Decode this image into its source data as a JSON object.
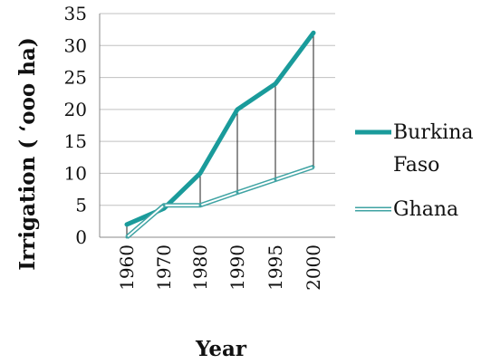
{
  "chart_data": {
    "type": "line",
    "title": "",
    "xlabel": "Year",
    "ylabel": "Irrigation ( ‘ooo ha)",
    "categories": [
      "1960",
      "1970",
      "1980",
      "1990",
      "1995",
      "2000"
    ],
    "ylim": [
      0,
      35
    ],
    "yticks": [
      "0",
      "5",
      "10",
      "15",
      "20",
      "25",
      "30",
      "35"
    ],
    "grid": "horizontal",
    "legend_position": "right",
    "series": [
      {
        "name": "Burkina Faso",
        "values": [
          2,
          4.5,
          10,
          20,
          24,
          32
        ],
        "color": "#1a9b9b",
        "style": "thick"
      },
      {
        "name": "Ghana",
        "values": [
          0,
          5,
          5,
          7,
          9,
          11
        ],
        "color": "#3fa3a3",
        "style": "double"
      }
    ],
    "drop_lines": true
  },
  "legend": {
    "burkina_line1": "Burkina",
    "burkina_line2": "Faso",
    "ghana": "Ghana"
  }
}
